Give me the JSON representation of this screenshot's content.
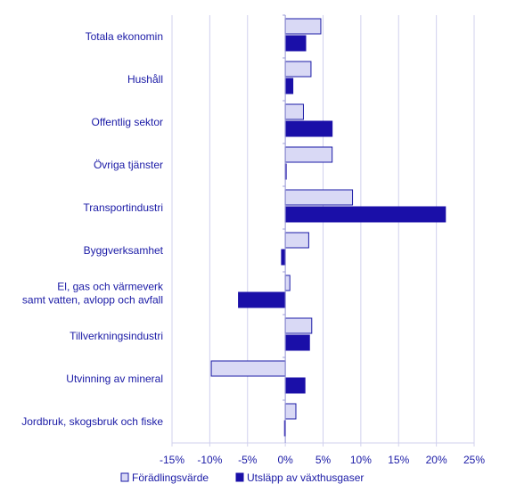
{
  "chart_data": {
    "type": "bar",
    "orientation": "horizontal",
    "categories": [
      "Totala ekonomin",
      "Hushåll",
      "Offentlig sektor",
      "Övriga tjänster",
      "Transportindustri",
      "Byggverksamhet",
      "El, gas och värmeverk\nsamt vatten, avlopp och avfall",
      "Tillverkningsindustri",
      "Utvinning av mineral",
      "Jordbruk, skogsbruk och fiske"
    ],
    "series": [
      {
        "name": "Förädlingsvärde",
        "color": "#d9d9f5",
        "stroke": "#1a1aa6",
        "values": [
          4.7,
          3.4,
          2.4,
          6.2,
          8.9,
          3.1,
          0.6,
          3.5,
          -9.8,
          1.4
        ]
      },
      {
        "name": "Utsläpp av växthusgaser",
        "color": "#1a0fa8",
        "stroke": "#1a0fa8",
        "values": [
          2.7,
          1.0,
          6.2,
          0.1,
          21.2,
          -0.5,
          -6.2,
          3.2,
          2.6,
          -0.1
        ]
      }
    ],
    "xlim": [
      -15,
      25
    ],
    "xticks": [
      -15,
      -10,
      -5,
      0,
      5,
      10,
      15,
      20,
      25
    ],
    "tick_format": "{v}%",
    "grid": true,
    "legend_position": "bottom"
  }
}
